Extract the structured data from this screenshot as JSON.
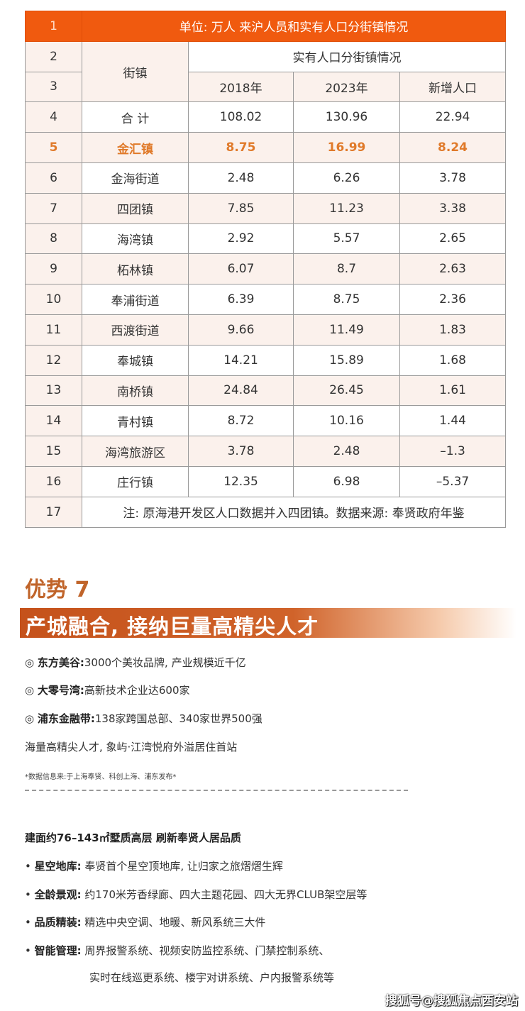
{
  "table": {
    "title": "单位: 万人 来沪人员和实有人口分街镇情况",
    "col_town": "街镇",
    "group_header": "实有人口分街镇情况",
    "col_2018": "2018年",
    "col_2023": "2023年",
    "col_new": "新增人口",
    "row_numbers": [
      "1",
      "2",
      "3"
    ],
    "rows": [
      {
        "n": "4",
        "town": "合 计",
        "y2018": "108.02",
        "y2023": "130.96",
        "added": "22.94"
      },
      {
        "n": "5",
        "town": "金汇镇",
        "y2018": "8.75",
        "y2023": "16.99",
        "added": "8.24"
      },
      {
        "n": "6",
        "town": "金海街道",
        "y2018": "2.48",
        "y2023": "6.26",
        "added": "3.78"
      },
      {
        "n": "7",
        "town": "四团镇",
        "y2018": "7.85",
        "y2023": "11.23",
        "added": "3.38"
      },
      {
        "n": "8",
        "town": "海湾镇",
        "y2018": "2.92",
        "y2023": "5.57",
        "added": "2.65"
      },
      {
        "n": "9",
        "town": "柘林镇",
        "y2018": "6.07",
        "y2023": "8.7",
        "added": "2.63"
      },
      {
        "n": "10",
        "town": "奉浦街道",
        "y2018": "6.39",
        "y2023": "8.75",
        "added": "2.36"
      },
      {
        "n": "11",
        "town": "西渡街道",
        "y2018": "9.66",
        "y2023": "11.49",
        "added": "1.83"
      },
      {
        "n": "12",
        "town": "奉城镇",
        "y2018": "14.21",
        "y2023": "15.89",
        "added": "1.68"
      },
      {
        "n": "13",
        "town": "南桥镇",
        "y2018": "24.84",
        "y2023": "26.45",
        "added": "1.61"
      },
      {
        "n": "14",
        "town": "青村镇",
        "y2018": "8.72",
        "y2023": "10.16",
        "added": "1.44"
      },
      {
        "n": "15",
        "town": "海湾旅游区",
        "y2018": "3.78",
        "y2023": "2.48",
        "added": "–1.3"
      },
      {
        "n": "16",
        "town": "庄行镇",
        "y2018": "12.35",
        "y2023": "6.98",
        "added": "–5.37"
      }
    ],
    "footer_n": "17",
    "footer": "注: 原海港开发区人口数据并入四团镇。数据来源: 奉贤政府年鉴"
  },
  "advantage": {
    "heading": "优势 7",
    "banner": "产城融合, 接纳巨量高精尖人才",
    "items": [
      {
        "mark": "◎",
        "label": "东方美谷:",
        "text": "3000个美妆品牌, 产业规模近千亿"
      },
      {
        "mark": "◎",
        "label": "大零号湾:",
        "text": "高新技术企业达600家"
      },
      {
        "mark": "◎",
        "label": "浦东金融带:",
        "text": "138家跨国总部、340家世界500强"
      }
    ],
    "summary": "海量高精尖人才, 象屿·江湾悦府外溢居住首站",
    "note": "*数据信息来:于上海奉贤、科创上海、浦东发布*"
  },
  "product": {
    "heading": "建面约76–143㎡墅质高层 刷新奉贤人居品质",
    "bullets": [
      {
        "label": "星空地库:",
        "text": " 奉贤首个星空顶地库, 让归家之旅熠熠生辉"
      },
      {
        "label": "全龄景观:",
        "text": " 约170米芳香绿廊、四大主题花园、四大无界CLUB架空层等"
      },
      {
        "label": "品质精装:",
        "text": " 精选中央空调、地暖、新风系统三大件"
      },
      {
        "label": "智能管理:",
        "text": " 周界报警系统、视频安防监控系统、门禁控制系统、"
      }
    ],
    "continuation": "实时在线巡更系统、楼宇对讲系统、户内报警系统等"
  },
  "watermark": "搜狐号@搜狐焦点西安站",
  "colors": {
    "header": "#f05a0f",
    "highlight": "#e07a2a",
    "accent": "#c0642a"
  }
}
